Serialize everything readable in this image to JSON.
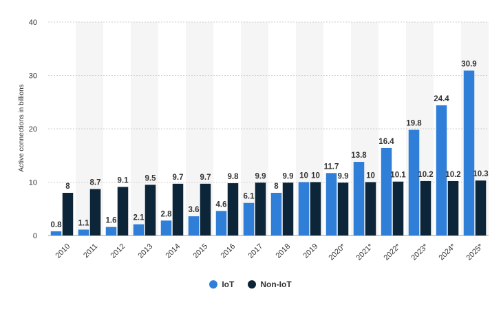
{
  "chart_data": {
    "type": "bar",
    "categories": [
      "2010",
      "2011",
      "2012",
      "2013",
      "2014",
      "2015",
      "2016",
      "2017",
      "2018",
      "2019",
      "2020*",
      "2021*",
      "2022*",
      "2023*",
      "2024*",
      "2025*"
    ],
    "series": [
      {
        "name": "IoT",
        "color": "#2f7ed8",
        "values": [
          0.8,
          1.1,
          1.6,
          2.1,
          2.8,
          3.6,
          4.6,
          6.1,
          8,
          10,
          11.7,
          13.8,
          16.4,
          19.8,
          24.4,
          30.9
        ]
      },
      {
        "name": "Non-IoT",
        "color": "#0d2538",
        "values": [
          8,
          8.7,
          9.1,
          9.5,
          9.7,
          9.7,
          9.8,
          9.9,
          9.9,
          10,
          9.9,
          10,
          10.1,
          10.2,
          10.2,
          10.3
        ]
      }
    ],
    "ylabel": "Active connections in billions",
    "xlabel": "",
    "ylim": [
      0,
      40
    ],
    "yticks": [
      0,
      10,
      20,
      30,
      40
    ],
    "grid": true,
    "legend_position": "bottom-center"
  }
}
